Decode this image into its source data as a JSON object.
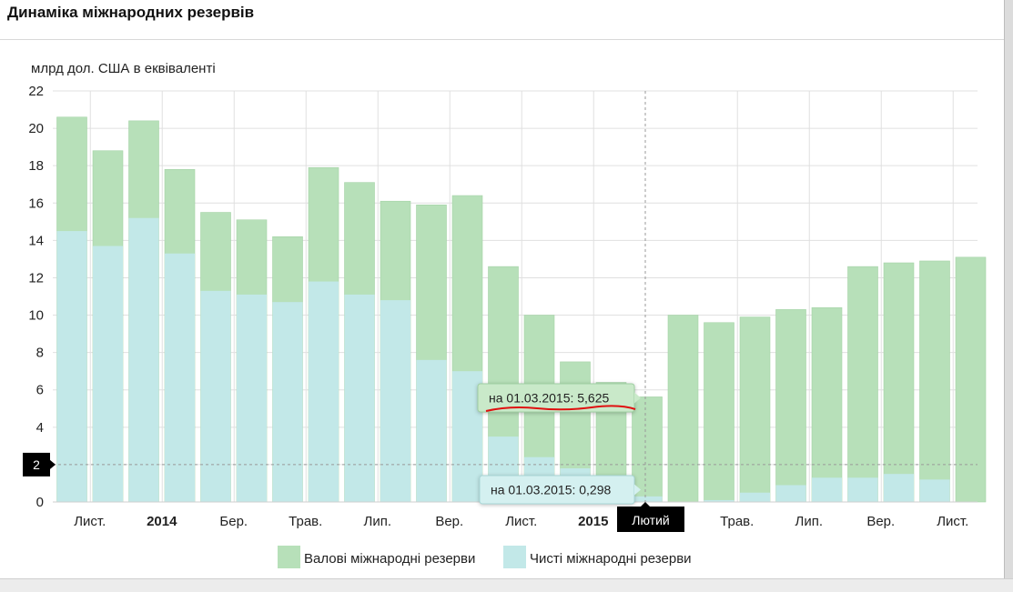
{
  "page": {
    "title": "Динаміка міжнародних резервів"
  },
  "chart_data": {
    "type": "bar",
    "stacked": false,
    "title": "",
    "ylabel": "млрд дол. США в еквіваленті",
    "xlabel": "",
    "ylim": [
      0,
      22
    ],
    "yticks": [
      0,
      2,
      4,
      6,
      8,
      10,
      12,
      14,
      16,
      18,
      20,
      22
    ],
    "grid": true,
    "legend_position": "bottom",
    "x_tick_labels": [
      {
        "label": "Лист.",
        "bar_index": 0.5,
        "bold": false
      },
      {
        "label": "2014",
        "bar_index": 2.5,
        "bold": true
      },
      {
        "label": "Бер.",
        "bar_index": 4.5,
        "bold": false
      },
      {
        "label": "Трав.",
        "bar_index": 6.5,
        "bold": false
      },
      {
        "label": "Лип.",
        "bar_index": 8.5,
        "bold": false
      },
      {
        "label": "Вер.",
        "bar_index": 10.5,
        "bold": false
      },
      {
        "label": "Лист.",
        "bar_index": 12.5,
        "bold": false
      },
      {
        "label": "2015",
        "bar_index": 14.5,
        "bold": true
      },
      {
        "label": "Трав.",
        "bar_index": 18.5,
        "bold": false
      },
      {
        "label": "Лип.",
        "bar_index": 20.5,
        "bold": false
      },
      {
        "label": "Вер.",
        "bar_index": 22.5,
        "bold": false
      },
      {
        "label": "Лист.",
        "bar_index": 24.5,
        "bold": false
      }
    ],
    "series": [
      {
        "name": "Валові міжнародні резерви",
        "color": "#b7e0b9",
        "values": [
          20.6,
          18.8,
          20.4,
          17.8,
          15.5,
          15.1,
          14.2,
          17.9,
          17.1,
          16.1,
          15.9,
          16.4,
          12.6,
          10.0,
          7.5,
          6.4,
          5.625,
          10.0,
          9.6,
          9.9,
          10.3,
          10.4,
          12.6,
          12.8,
          12.9,
          13.1
        ]
      },
      {
        "name": "Чисті міжнародні резерви",
        "color": "#c2e8e8",
        "values": [
          14.5,
          13.7,
          15.2,
          13.3,
          11.3,
          11.1,
          10.7,
          11.8,
          11.1,
          10.8,
          7.6,
          7.0,
          3.5,
          2.4,
          1.8,
          1.0,
          0.298,
          0.0,
          0.1,
          0.5,
          0.9,
          1.3,
          1.3,
          1.5,
          1.2,
          0.0
        ]
      }
    ],
    "highlight": {
      "bar_index": 16,
      "x_badge": "Лютий",
      "y_badge": "2",
      "tooltip_gross": "на 01.03.2015: 5,625",
      "tooltip_net": "на 01.03.2015: 0,298"
    }
  },
  "colors": {
    "grid": "#e0e0e0",
    "badge": "#000000",
    "underline": "#e01010",
    "gross": "#b7e0b9",
    "net": "#c2e8e8"
  }
}
